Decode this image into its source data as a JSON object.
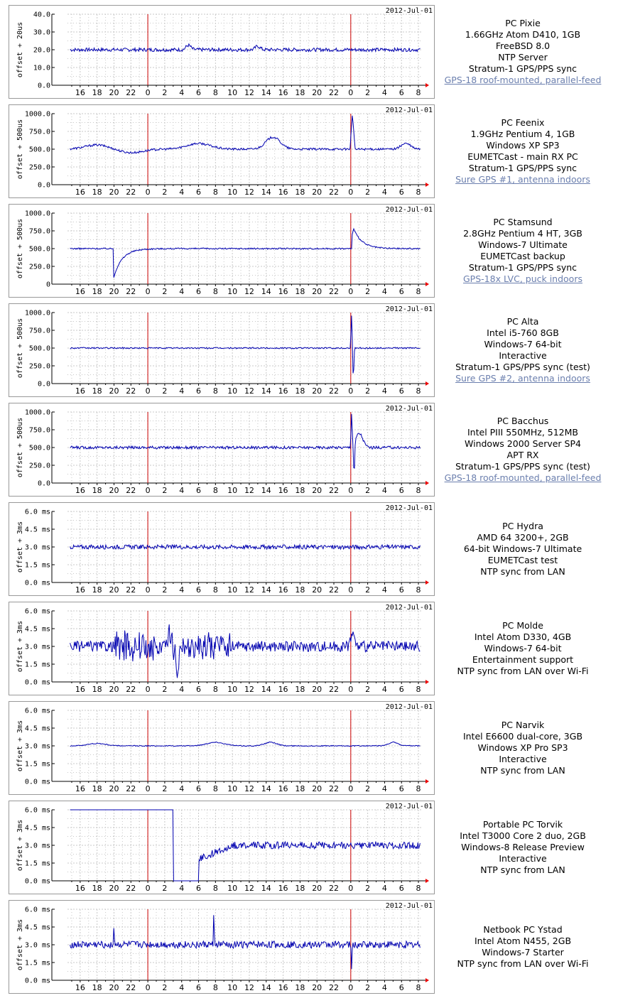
{
  "hour_labels": [
    "16",
    "18",
    "20",
    "22",
    "0",
    "2",
    "4",
    "6",
    "8",
    "10",
    "12",
    "14",
    "16",
    "18",
    "20",
    "22",
    "0",
    "2",
    "4",
    "6",
    "8"
  ],
  "colors": {
    "trace": "#0000b0",
    "day_marker": "#cc0000",
    "grid": "#c8c8c8",
    "axis": "#000000",
    "end_marker": "#ee0000",
    "link": "#6b7fae"
  },
  "panels": [
    {
      "date": "2012-Jul-01",
      "ylabel": "offset + 20us",
      "yticks": [
        "0.0",
        "10.0",
        "20.0",
        "30.0",
        "40.0"
      ],
      "ymax": 40,
      "lines": [
        "PC Pixie",
        "1.66GHz Atom D410, 1GB",
        "FreeBSD 8.0",
        "NTP Server",
        "Stratum-1 GPS/PPS sync"
      ],
      "link": "GPS-18 roof-mounted, parallel-feed",
      "series": {
        "base": 20,
        "noise": 1.0,
        "events": [
          {
            "x": 4.8,
            "amp": 2.5,
            "w": 0.4
          },
          {
            "x": 13,
            "amp": 2,
            "w": 0.4
          }
        ]
      }
    },
    {
      "date": "2012-Jul-01",
      "ylabel": "offset + 500us",
      "yticks": [
        "0.0",
        "250.0",
        "500.0",
        "750.0",
        "1000.0"
      ],
      "ymax": 1000,
      "lines": [
        "PC Feenix",
        "1.9GHz Pentium 4, 1GB",
        "Windows XP SP3",
        "EUMETCast - main RX PC",
        "Stratum-1 GPS/PPS sync"
      ],
      "link": "Sure GPS #1, antenna indoors",
      "series": {
        "base": 500,
        "noise": 15,
        "events": [
          {
            "x": -6,
            "amp": 60,
            "w": 2
          },
          {
            "x": -2,
            "amp": -50,
            "w": 2
          },
          {
            "x": 6,
            "amp": 80,
            "w": 2
          },
          {
            "x": 14.8,
            "amp": 170,
            "w": 1.2
          },
          {
            "x": 24.2,
            "amp": 500,
            "w": 0.3,
            "spike": true
          },
          {
            "x": 30.5,
            "amp": 80,
            "w": 0.8
          }
        ]
      }
    },
    {
      "date": "2012-Jul-01",
      "ylabel": "offset + 500us",
      "yticks": [
        "0",
        "250.0",
        "500.0",
        "750.0",
        "1000.0"
      ],
      "ymax": 1000,
      "lines": [
        "PC Stamsund",
        "2.8GHz Pentium 4 HT, 3GB",
        "Windows-7 Ultimate",
        "EUMETCast backup",
        "Stratum-1 GPS/PPS sync"
      ],
      "link": "GPS-18x LVC, puck indoors",
      "series": {
        "base": 500,
        "noise": 10,
        "events": [
          {
            "x": -4.1,
            "amp": -430,
            "w": 0,
            "recover": 3
          },
          {
            "x": 24.1,
            "amp": 350,
            "w": 0,
            "recover": 3
          },
          {
            "x": 24.2,
            "amp": -150,
            "w": 0.1,
            "spike": true
          }
        ]
      }
    },
    {
      "date": "2012-Jul-01",
      "ylabel": "offset + 500us",
      "yticks": [
        "0.0",
        "250.0",
        "500.0",
        "750.0",
        "1000.0"
      ],
      "ymax": 1000,
      "lines": [
        "PC Alta",
        "Intel i5-760 8GB",
        "Windows-7 64-bit",
        "Interactive",
        "Stratum-1 GPS/PPS sync (test)"
      ],
      "link": "Sure GPS #2, antenna indoors",
      "series": {
        "base": 500,
        "noise": 10,
        "events": [
          {
            "x": 24.1,
            "amp": 480,
            "w": 0.15,
            "spike": true
          },
          {
            "x": 24.3,
            "amp": -450,
            "w": 0.15,
            "spike": true
          }
        ]
      }
    },
    {
      "date": "2012-Jul-01",
      "ylabel": "offset + 500us",
      "yticks": [
        "0.0",
        "250.0",
        "500.0",
        "750.0",
        "1000.0"
      ],
      "ymax": 1000,
      "lines": [
        "PC Bacchus",
        "Intel PIII 550MHz, 512MB",
        "Windows 2000 Server SP4",
        "APT RX",
        "Stratum-1 GPS/PPS sync (test)"
      ],
      "link": "GPS-18 roof-mounted, parallel-feed",
      "series": {
        "base": 500,
        "noise": 20,
        "events": [
          {
            "x": 24.1,
            "amp": 480,
            "w": 0.15,
            "spike": true
          },
          {
            "x": 24.4,
            "amp": -500,
            "w": 0.15,
            "spike": true
          },
          {
            "x": 25,
            "amp": 200,
            "w": 0.6
          }
        ]
      }
    },
    {
      "date": "2012-Jul-01",
      "ylabel": "offset + 3ms",
      "yticks": [
        "0.0 ms",
        "1.5 ms",
        "3.0 ms",
        "4.5 ms",
        "6.0 ms"
      ],
      "ymax": 6,
      "lines": [
        "PC Hydra",
        "AMD 64 3200+, 2GB",
        "64-bit Windows-7 Ultimate",
        "EUMETCast test",
        "NTP sync from LAN"
      ],
      "link": "",
      "series": {
        "base": 3,
        "noise": 0.18,
        "events": []
      }
    },
    {
      "date": "2012-Jul-01",
      "ylabel": "offset + 3ms",
      "yticks": [
        "0.0 ms",
        "1.5 ms",
        "3.0 ms",
        "4.5 ms",
        "6.0 ms"
      ],
      "ymax": 6,
      "lines": [
        "PC Molde",
        "Intel Atom D330, 4GB",
        "Windows-7 64-bit",
        "Entertainment support",
        "NTP sync from LAN over Wi-Fi"
      ],
      "link": "",
      "series": {
        "base": 3,
        "noise": 0.45,
        "events": [
          {
            "x": 2.5,
            "amp": 2.5,
            "w": 0.2,
            "spike": true
          },
          {
            "x": 3.5,
            "amp": -1.5,
            "w": 0.3
          },
          {
            "x": 24.2,
            "amp": 1.2,
            "w": 0.3
          }
        ],
        "wild": [
          -4,
          10
        ]
      }
    },
    {
      "date": "2012-Jul-01",
      "ylabel": "offset + 3ms",
      "yticks": [
        "0.0 ms",
        "1.5 ms",
        "3.0 ms",
        "4.5 ms",
        "6.0 ms"
      ],
      "ymax": 6,
      "lines": [
        "PC Narvik",
        "Intel E6600 dual-core, 3GB",
        "Windows XP Pro SP3",
        "Interactive",
        "NTP sync from LAN"
      ],
      "link": "",
      "series": {
        "base": 3,
        "noise": 0.04,
        "events": [
          {
            "x": -6,
            "amp": 0.2,
            "w": 1.5
          },
          {
            "x": 8,
            "amp": 0.3,
            "w": 1.5
          },
          {
            "x": 14.5,
            "amp": 0.3,
            "w": 1
          },
          {
            "x": 29,
            "amp": 0.3,
            "w": 0.8
          }
        ]
      }
    },
    {
      "date": "2012-Jul-01",
      "ylabel": "offset + 3ms",
      "yticks": [
        "0.0 ms",
        "1.5 ms",
        "3.0 ms",
        "4.5 ms",
        "6.0 ms"
      ],
      "ymax": 6,
      "lines": [
        "Portable PC Torvik",
        "Intel T3000 Core 2 duo, 2GB",
        "Windows-8 Release Preview",
        "Interactive",
        "NTP sync from LAN"
      ],
      "link": "",
      "series": {
        "base": 3,
        "noise": 0.3,
        "clip_high_until": 3,
        "clip_low_until": 6
      }
    },
    {
      "date": "2012-Jul-01",
      "ylabel": "offset + 3ms",
      "yticks": [
        "0.0 ms",
        "1.5 ms",
        "3.0 ms",
        "4.5 ms",
        "6.0 ms"
      ],
      "ymax": 6,
      "lines": [
        "Netbook PC Ystad",
        "Intel Atom N455, 2GB",
        "Windows-7 Starter",
        "NTP sync from LAN over Wi-Fi"
      ],
      "link": "",
      "series": {
        "base": 3,
        "noise": 0.3,
        "events": [
          {
            "x": 24.1,
            "amp": -2.5,
            "w": 0.1,
            "spike": true
          },
          {
            "x": -4,
            "amp": 1.8,
            "w": 0.1,
            "spike": true
          },
          {
            "x": 7.8,
            "amp": 2.5,
            "w": 0.1,
            "spike": true
          }
        ]
      }
    }
  ]
}
